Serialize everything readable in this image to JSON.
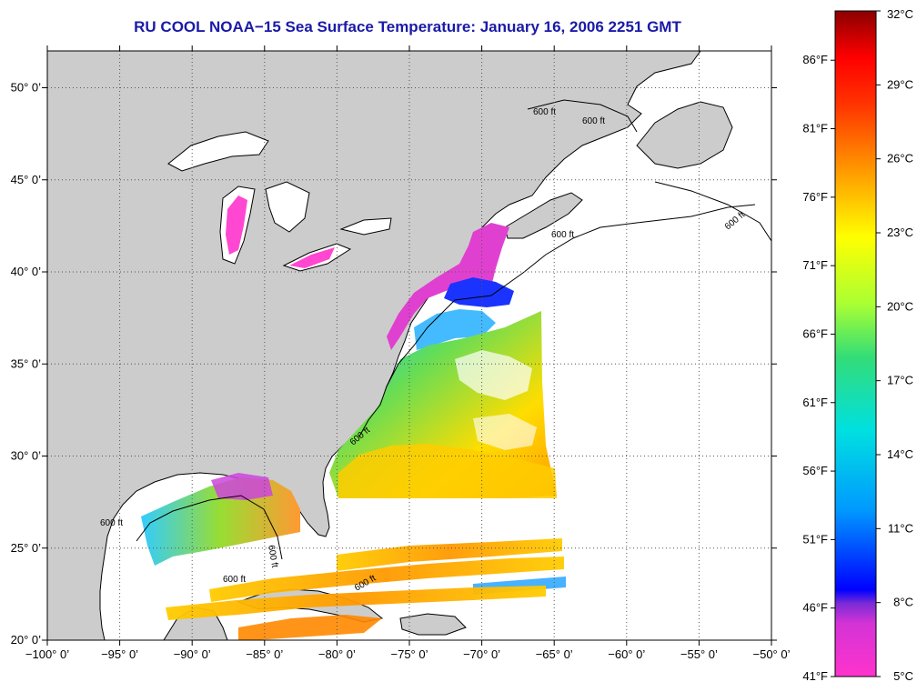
{
  "title": "RU COOL  NOAA−15  Sea Surface Temperature:  January 16, 2006 2251 GMT",
  "map": {
    "lon_range": [
      -100,
      -50
    ],
    "lat_range": [
      20,
      52
    ],
    "x_ticks": [
      {
        "lon": -100,
        "label": "−100° 0’"
      },
      {
        "lon": -95,
        "label": "−95° 0’"
      },
      {
        "lon": -90,
        "label": "−90° 0’"
      },
      {
        "lon": -85,
        "label": "−85° 0’"
      },
      {
        "lon": -80,
        "label": "−80° 0’"
      },
      {
        "lon": -75,
        "label": "−75° 0’"
      },
      {
        "lon": -70,
        "label": "−70° 0’"
      },
      {
        "lon": -65,
        "label": "−65° 0’"
      },
      {
        "lon": -60,
        "label": "−60° 0’"
      },
      {
        "lon": -55,
        "label": "−55° 0’"
      },
      {
        "lon": -50,
        "label": "−50° 0’"
      }
    ],
    "y_ticks": [
      {
        "lat": 20,
        "label": "20° 0’"
      },
      {
        "lat": 25,
        "label": "25° 0’"
      },
      {
        "lat": 30,
        "label": "30° 0’"
      },
      {
        "lat": 35,
        "label": "35° 0’"
      },
      {
        "lat": 40,
        "label": "40° 0’"
      },
      {
        "lat": 45,
        "label": "45° 0’"
      },
      {
        "lat": 50,
        "label": "50° 0’"
      }
    ],
    "grid": "dotted",
    "land_color": "#cccccc",
    "ocean_color": "#ffffff",
    "isobath_labels": [
      "600 ft",
      "600 ft",
      "600 ft",
      "600 ft",
      "600 ft",
      "600 ft",
      "600 ft",
      "600 ft",
      "600 ft"
    ]
  },
  "colorbar": {
    "celsius_ticks": [
      {
        "value": 32,
        "label": "32°C"
      },
      {
        "value": 29,
        "label": "29°C"
      },
      {
        "value": 26,
        "label": "26°C"
      },
      {
        "value": 23,
        "label": "23°C"
      },
      {
        "value": 20,
        "label": "20°C"
      },
      {
        "value": 17,
        "label": "17°C"
      },
      {
        "value": 14,
        "label": "14°C"
      },
      {
        "value": 11,
        "label": "11°C"
      },
      {
        "value": 8,
        "label": "8°C"
      },
      {
        "value": 5,
        "label": "5°C"
      }
    ],
    "fahrenheit_ticks": [
      {
        "value": 86,
        "label": "86°F"
      },
      {
        "value": 81,
        "label": "81°F"
      },
      {
        "value": 76,
        "label": "76°F"
      },
      {
        "value": 71,
        "label": "71°F"
      },
      {
        "value": 66,
        "label": "66°F"
      },
      {
        "value": 61,
        "label": "61°F"
      },
      {
        "value": 56,
        "label": "56°F"
      },
      {
        "value": 51,
        "label": "51°F"
      },
      {
        "value": 46,
        "label": "46°F"
      },
      {
        "value": 41,
        "label": "41°F"
      }
    ],
    "range_c": [
      5,
      32
    ],
    "colors": [
      "#ff33cc",
      "#7a2bd6",
      "#0000ff",
      "#00a0ff",
      "#00e0e0",
      "#33dd77",
      "#c8ff33",
      "#ffff00",
      "#ff9900",
      "#ff3300",
      "#ff0000",
      "#8b0000"
    ]
  }
}
